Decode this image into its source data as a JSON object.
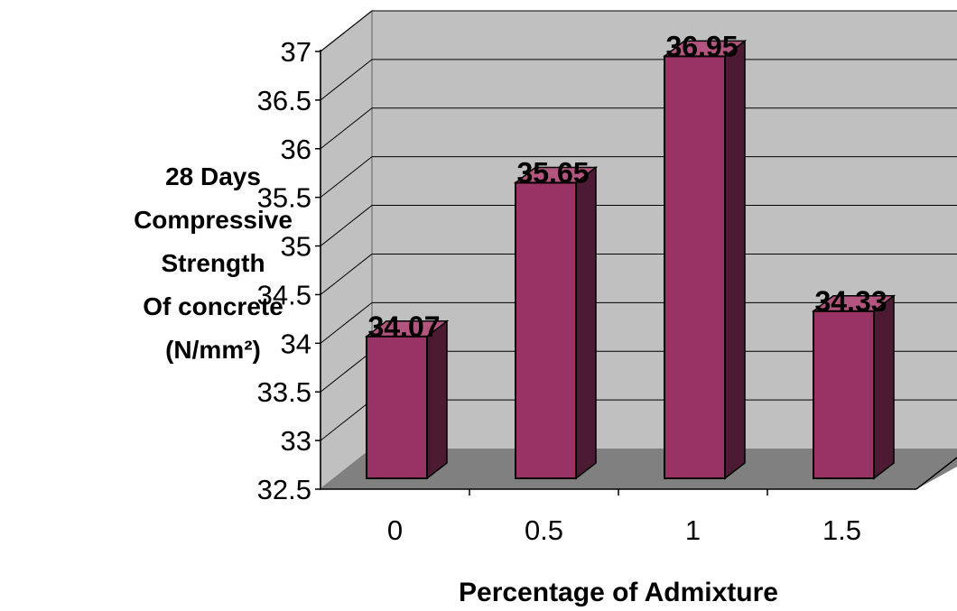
{
  "chart_data": {
    "type": "bar",
    "style": "3d-column",
    "categories": [
      "0",
      "0.5",
      "1",
      "1.5"
    ],
    "values": [
      34.07,
      35.65,
      36.95,
      34.33
    ],
    "data_labels": [
      "34.07",
      "35.65",
      "36.95",
      "34.33"
    ],
    "title": "",
    "xlabel": "Percentage of Admixture",
    "ylabel_lines": [
      "28 Days",
      "Compressive",
      "Strength",
      "Of concrete",
      "(N/mm²)"
    ],
    "ylim": [
      32.5,
      37
    ],
    "yticks": [
      "32.5",
      "33",
      "33.5",
      "34",
      "34.5",
      "35",
      "35.5",
      "36",
      "36.5",
      "37"
    ],
    "grid": true,
    "legend": "none"
  },
  "colors": {
    "bar_front": "#993366",
    "bar_top": "#b3557f",
    "bar_side": "#4d1a33",
    "wall": "#c0c0c0",
    "floor": "#808080",
    "gridline": "#000000"
  }
}
